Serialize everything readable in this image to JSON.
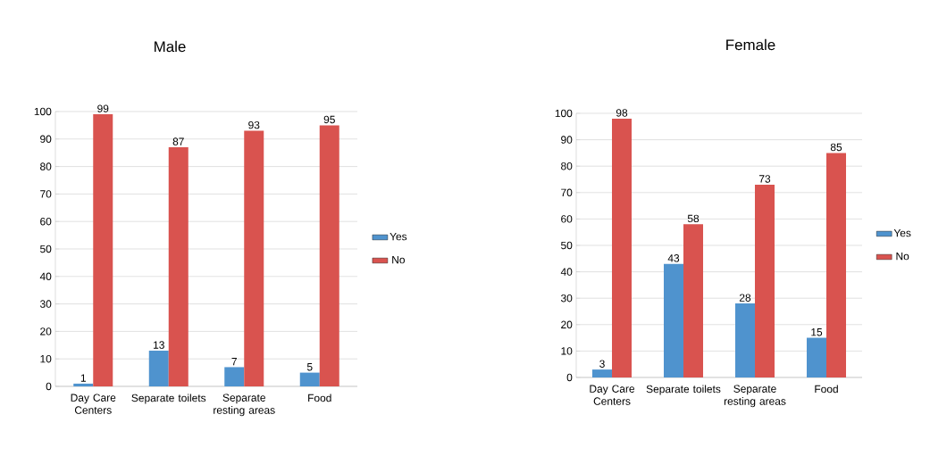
{
  "chart_data": [
    {
      "type": "bar",
      "title": "Male",
      "categories": [
        "Day Care Centers",
        "Separate toilets",
        "Separate resting areas",
        "Food"
      ],
      "series": [
        {
          "name": "Yes",
          "color": "#4f93ce",
          "values": [
            1,
            13,
            7,
            5
          ]
        },
        {
          "name": "No",
          "color": "#d9534f",
          "values": [
            99,
            87,
            93,
            95
          ]
        }
      ],
      "ylim": [
        0,
        100
      ],
      "yticks": [
        0,
        10,
        20,
        30,
        40,
        50,
        60,
        70,
        80,
        90,
        100
      ],
      "grid": "y",
      "legend": "right",
      "data_labels": true
    },
    {
      "type": "bar",
      "title": "Female",
      "categories": [
        "Day Care Centers",
        "Separate toilets",
        "Separate resting areas",
        "Food"
      ],
      "series": [
        {
          "name": "Yes",
          "color": "#4f93ce",
          "values": [
            3,
            43,
            28,
            15
          ]
        },
        {
          "name": "No",
          "color": "#d9534f",
          "values": [
            98,
            58,
            73,
            85
          ]
        }
      ],
      "ylim": [
        0,
        100
      ],
      "yticks": [
        0,
        10,
        20,
        30,
        40,
        50,
        60,
        70,
        80,
        90,
        100
      ],
      "grid": "y",
      "legend": "right",
      "data_labels": true
    }
  ]
}
